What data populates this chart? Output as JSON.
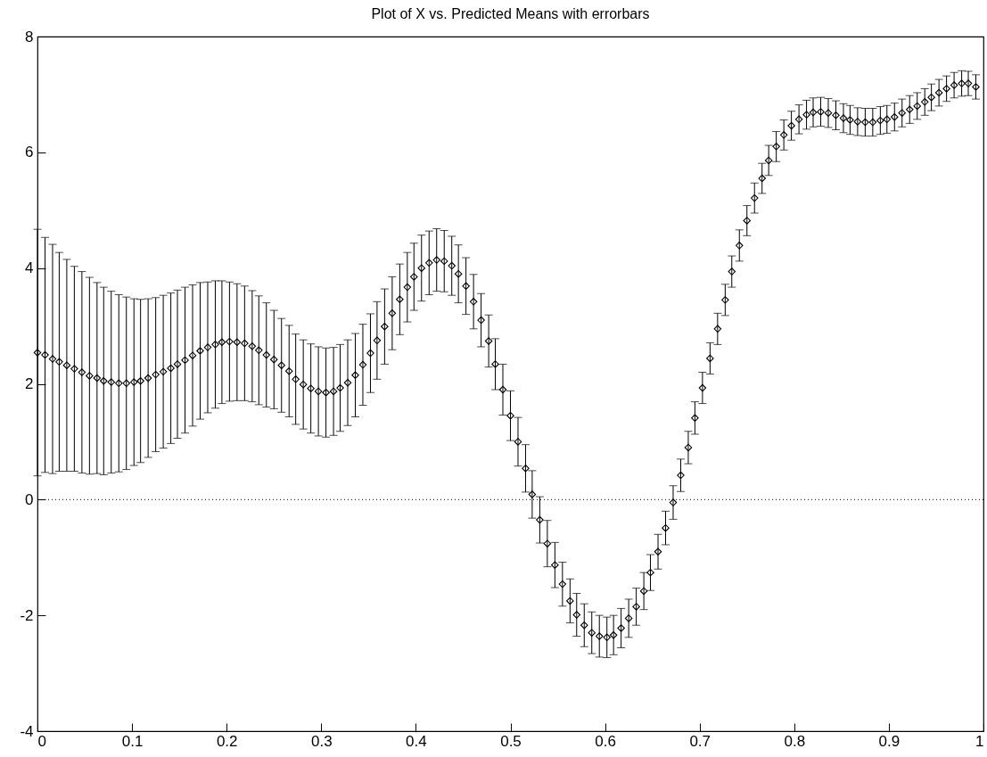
{
  "chart_data": {
    "type": "scatter",
    "title": "Plot of X vs. Predicted Means with errorbars",
    "marker": "diamond",
    "grid": false,
    "xlim": [
      0,
      1
    ],
    "xticks": [
      0,
      0.1,
      0.2,
      0.3,
      0.4,
      0.5,
      0.6,
      0.7,
      0.8,
      0.9,
      1
    ],
    "ylim": [
      -4,
      8
    ],
    "yticks": [
      -4,
      -2,
      0,
      2,
      4,
      6,
      8
    ],
    "ref_lines": [
      {
        "axis": "y",
        "value": 0,
        "label": null,
        "color": "#000000",
        "line_style": "dotted"
      }
    ],
    "x": [
      0,
      0.008,
      0.016,
      0.023,
      0.031,
      0.039,
      0.047,
      0.055,
      0.063,
      0.07,
      0.078,
      0.086,
      0.094,
      0.102,
      0.109,
      0.117,
      0.125,
      0.133,
      0.141,
      0.148,
      0.156,
      0.164,
      0.172,
      0.18,
      0.188,
      0.195,
      0.203,
      0.211,
      0.219,
      0.227,
      0.234,
      0.242,
      0.25,
      0.258,
      0.266,
      0.273,
      0.281,
      0.289,
      0.297,
      0.305,
      0.313,
      0.32,
      0.328,
      0.336,
      0.344,
      0.352,
      0.359,
      0.367,
      0.375,
      0.383,
      0.391,
      0.398,
      0.406,
      0.414,
      0.422,
      0.43,
      0.438,
      0.445,
      0.453,
      0.461,
      0.469,
      0.477,
      0.484,
      0.492,
      0.5,
      0.508,
      0.516,
      0.523,
      0.531,
      0.539,
      0.547,
      0.555,
      0.563,
      0.57,
      0.578,
      0.586,
      0.594,
      0.602,
      0.609,
      0.617,
      0.625,
      0.633,
      0.641,
      0.648,
      0.656,
      0.664,
      0.672,
      0.68,
      0.688,
      0.695,
      0.703,
      0.711,
      0.719,
      0.727,
      0.734,
      0.742,
      0.75,
      0.758,
      0.766,
      0.773,
      0.781,
      0.789,
      0.797,
      0.805,
      0.813,
      0.82,
      0.828,
      0.836,
      0.844,
      0.852,
      0.859,
      0.867,
      0.875,
      0.883,
      0.891,
      0.898,
      0.906,
      0.914,
      0.922,
      0.93,
      0.938,
      0.945,
      0.953,
      0.961,
      0.969,
      0.977,
      0.984,
      0.992
    ],
    "series": [
      {
        "color": "#000000",
        "values": [
          2.54,
          2.5,
          2.43,
          2.38,
          2.32,
          2.26,
          2.2,
          2.14,
          2.1,
          2.05,
          2.03,
          2.01,
          2.01,
          2.03,
          2.05,
          2.1,
          2.16,
          2.21,
          2.27,
          2.34,
          2.41,
          2.49,
          2.57,
          2.63,
          2.68,
          2.72,
          2.73,
          2.72,
          2.7,
          2.65,
          2.58,
          2.5,
          2.42,
          2.32,
          2.22,
          2.08,
          1.99,
          1.92,
          1.87,
          1.85,
          1.87,
          1.93,
          2.02,
          2.15,
          2.33,
          2.53,
          2.75,
          2.99,
          3.22,
          3.46,
          3.67,
          3.85,
          4.0,
          4.09,
          4.14,
          4.12,
          4.04,
          3.9,
          3.69,
          3.42,
          3.1,
          2.74,
          2.34,
          1.9,
          1.45,
          1.0,
          0.54,
          0.09,
          -0.35,
          -0.76,
          -1.13,
          -1.46,
          -1.75,
          -1.99,
          -2.17,
          -2.3,
          -2.36,
          -2.38,
          -2.34,
          -2.22,
          -2.05,
          -1.85,
          -1.58,
          -1.26,
          -0.9,
          -0.49,
          -0.05,
          0.42,
          0.9,
          1.41,
          1.93,
          2.44,
          2.95,
          3.45,
          3.94,
          4.39,
          4.82,
          5.21,
          5.55,
          5.86,
          6.1,
          6.3,
          6.46,
          6.57,
          6.65,
          6.69,
          6.7,
          6.68,
          6.64,
          6.59,
          6.56,
          6.53,
          6.52,
          6.52,
          6.55,
          6.57,
          6.61,
          6.68,
          6.74,
          6.8,
          6.87,
          6.95,
          7.03,
          7.1,
          7.16,
          7.19,
          7.19,
          7.13
        ],
        "errors": [
          2.13,
          2.03,
          1.98,
          1.89,
          1.83,
          1.77,
          1.74,
          1.7,
          1.65,
          1.62,
          1.57,
          1.53,
          1.49,
          1.44,
          1.41,
          1.37,
          1.33,
          1.32,
          1.3,
          1.28,
          1.26,
          1.22,
          1.18,
          1.13,
          1.1,
          1.06,
          1.03,
          1.01,
          0.99,
          0.96,
          0.94,
          0.9,
          0.85,
          0.81,
          0.79,
          0.78,
          0.77,
          0.77,
          0.77,
          0.77,
          0.76,
          0.75,
          0.74,
          0.72,
          0.7,
          0.68,
          0.67,
          0.65,
          0.63,
          0.61,
          0.6,
          0.58,
          0.57,
          0.55,
          0.54,
          0.53,
          0.51,
          0.5,
          0.49,
          0.47,
          0.46,
          0.45,
          0.44,
          0.44,
          0.43,
          0.42,
          0.41,
          0.41,
          0.4,
          0.4,
          0.39,
          0.38,
          0.38,
          0.37,
          0.37,
          0.36,
          0.36,
          0.35,
          0.34,
          0.34,
          0.33,
          0.32,
          0.32,
          0.31,
          0.3,
          0.29,
          0.29,
          0.28,
          0.28,
          0.28,
          0.27,
          0.27,
          0.27,
          0.27,
          0.27,
          0.27,
          0.26,
          0.26,
          0.26,
          0.26,
          0.26,
          0.26,
          0.25,
          0.25,
          0.25,
          0.25,
          0.25,
          0.25,
          0.25,
          0.25,
          0.25,
          0.24,
          0.24,
          0.24,
          0.24,
          0.24,
          0.24,
          0.24,
          0.24,
          0.23,
          0.23,
          0.23,
          0.23,
          0.22,
          0.22,
          0.22,
          0.21,
          0.21
        ]
      }
    ]
  }
}
